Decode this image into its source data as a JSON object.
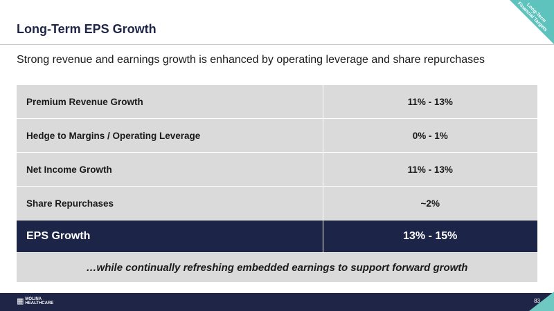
{
  "slide": {
    "title": "Long-Term EPS Growth",
    "subtitle": "Strong revenue and earnings growth is enhanced by operating leverage and share repurchases",
    "corner_tag_line1": "Long-Term",
    "corner_tag_line2": "Financial Targets",
    "page_number": "83"
  },
  "table": {
    "rows": [
      {
        "label": "Premium Revenue Growth",
        "value": "11%  - 13%"
      },
      {
        "label": "Hedge to Margins / Operating Leverage",
        "value": "0%  - 1%"
      },
      {
        "label": "Net Income Growth",
        "value": "11%  - 13%"
      },
      {
        "label": "Share Repurchases",
        "value": "~2%"
      }
    ],
    "total": {
      "label": "EPS Growth",
      "value": "13% - 15%"
    },
    "note": "…while continually refreshing embedded earnings to support forward growth"
  },
  "footer": {
    "logo_line1": "MOLINA",
    "logo_line2": "HEALTHCARE"
  },
  "colors": {
    "navy": "#1f2547",
    "teal": "#5ec3bd",
    "row_gray": "#dadada"
  }
}
